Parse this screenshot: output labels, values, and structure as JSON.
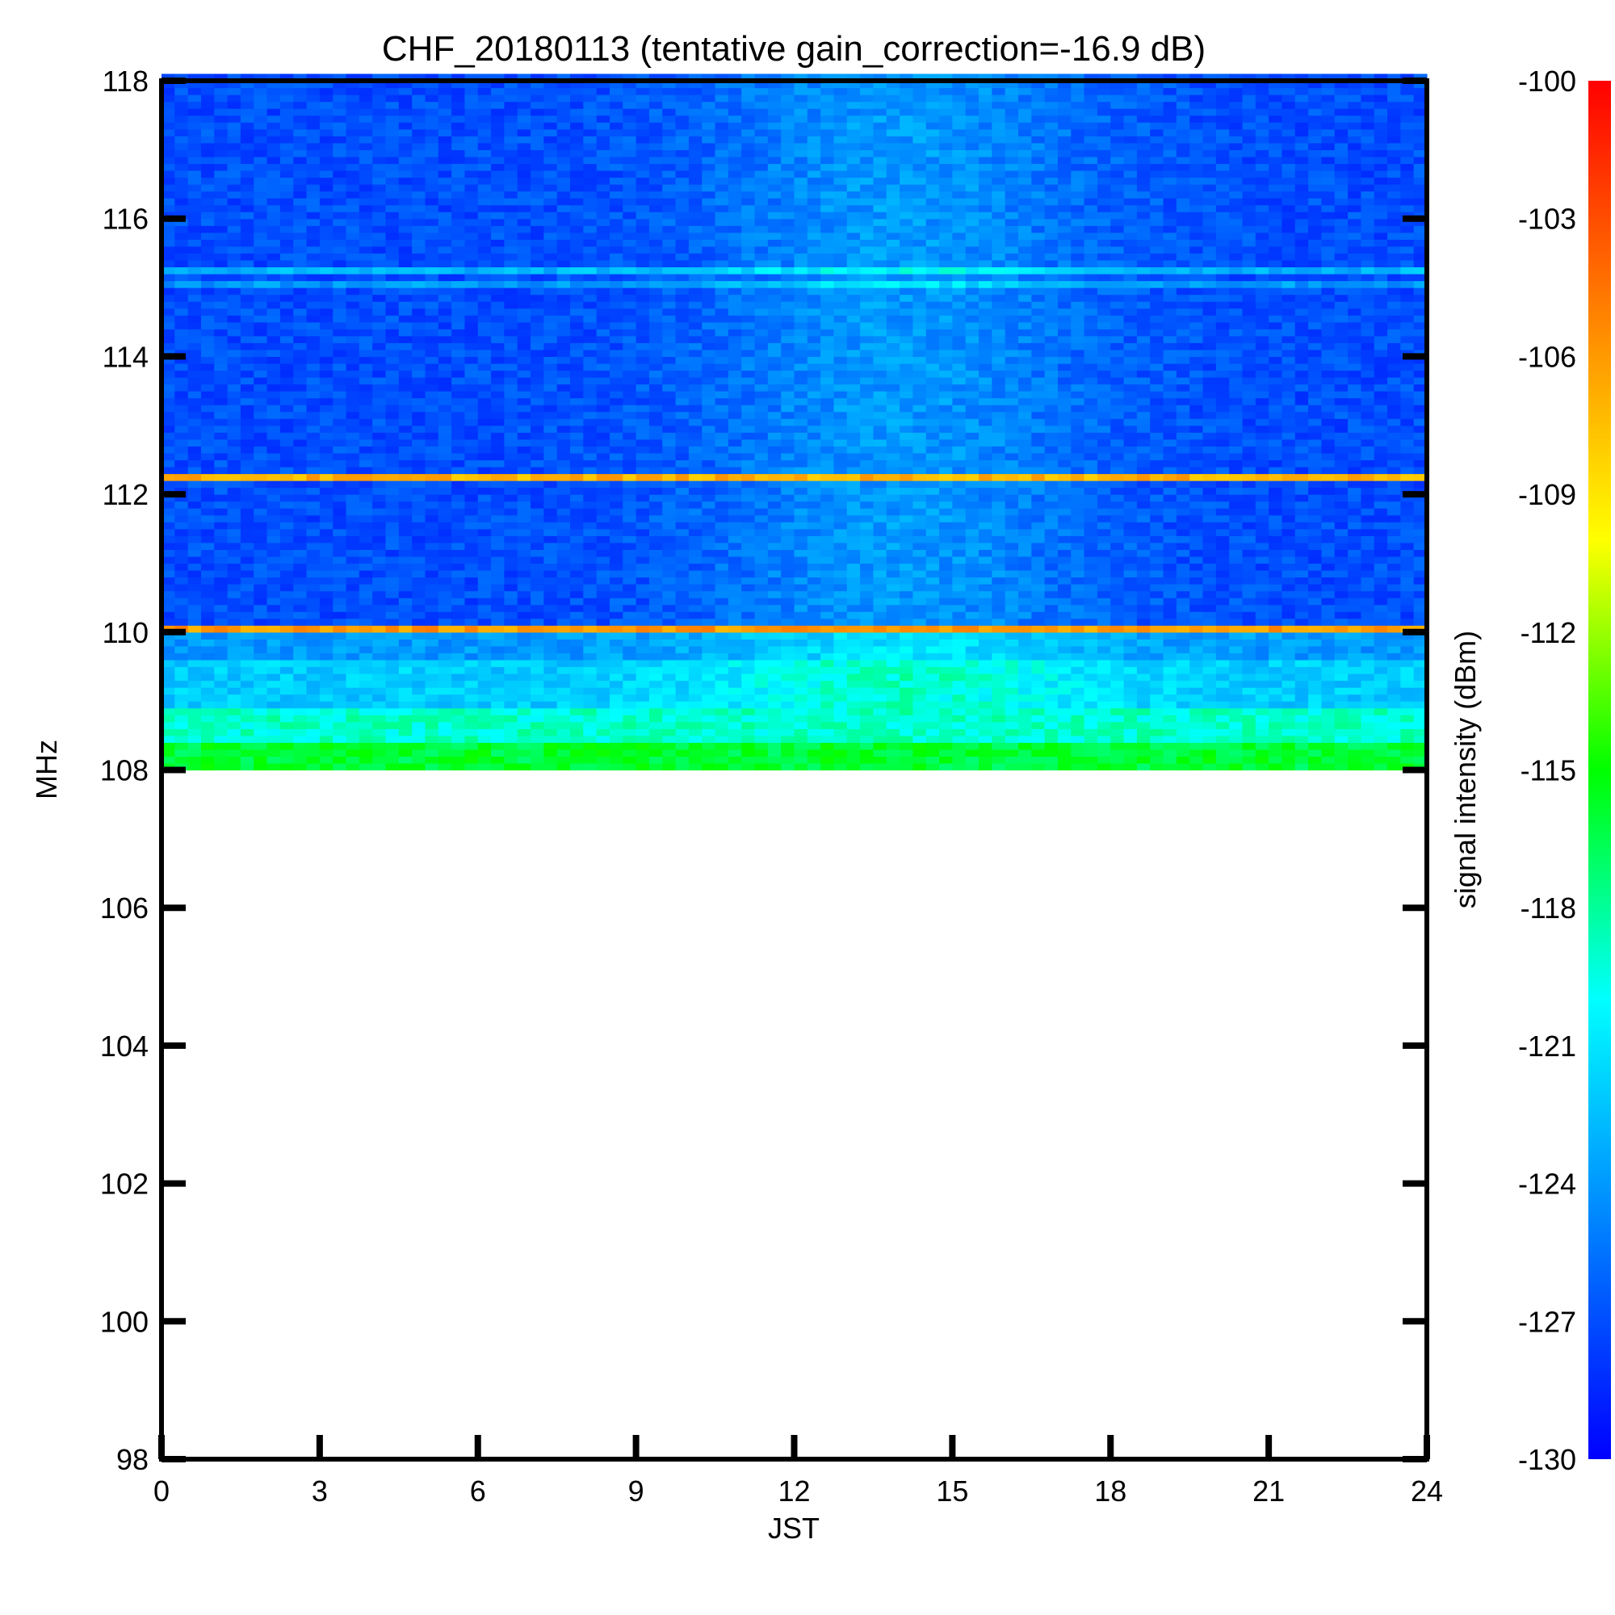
{
  "chart_data": {
    "type": "heatmap",
    "title": "CHF_20180113 (tentative gain_correction=-16.9 dB)",
    "xlabel": "JST",
    "ylabel": "MHz",
    "colorbar_label": "signal intensity (dBm)",
    "xlim": [
      0,
      24
    ],
    "ylim": [
      98,
      118
    ],
    "x_ticks": [
      "0",
      "3",
      "6",
      "9",
      "12",
      "15",
      "18",
      "21",
      "24"
    ],
    "y_ticks": [
      "98",
      "100",
      "102",
      "104",
      "106",
      "108",
      "110",
      "112",
      "114",
      "116",
      "118"
    ],
    "colorbar_ticks": [
      "-100",
      "-103",
      "-106",
      "-109",
      "-112",
      "-115",
      "-118",
      "-121",
      "-124",
      "-127",
      "-130"
    ],
    "colorbar_range": [
      -130,
      -100
    ],
    "colormap": [
      "#0000ff",
      "#0080ff",
      "#00ffff",
      "#00ff00",
      "#ffff00",
      "#ff8000",
      "#ff0000"
    ],
    "data_extent": {
      "freq_min": 108,
      "freq_max": 118.1,
      "time_min": 0,
      "time_max": 24
    },
    "bands": [
      {
        "freq_from": 108.0,
        "freq_to": 108.4,
        "level": -116
      },
      {
        "freq_from": 108.4,
        "freq_to": 108.9,
        "level": -119
      },
      {
        "freq_from": 108.9,
        "freq_to": 109.6,
        "level": -122
      },
      {
        "freq_from": 109.6,
        "freq_to": 110.0,
        "level": -124
      },
      {
        "freq_from": 110.0,
        "freq_to": 110.1,
        "level": -106
      },
      {
        "freq_from": 110.1,
        "freq_to": 112.2,
        "level": -127
      },
      {
        "freq_from": 112.2,
        "freq_to": 112.26,
        "level": -107
      },
      {
        "freq_from": 112.26,
        "freq_to": 115.0,
        "level": -127
      },
      {
        "freq_from": 115.0,
        "freq_to": 115.1,
        "level": -124
      },
      {
        "freq_from": 115.2,
        "freq_to": 115.3,
        "level": -123
      },
      {
        "freq_from": 115.3,
        "freq_to": 118.1,
        "level": -127
      }
    ],
    "daytime_enhancement": {
      "time_center": 14,
      "time_width": 3.5,
      "max_boost_db": 3
    }
  }
}
